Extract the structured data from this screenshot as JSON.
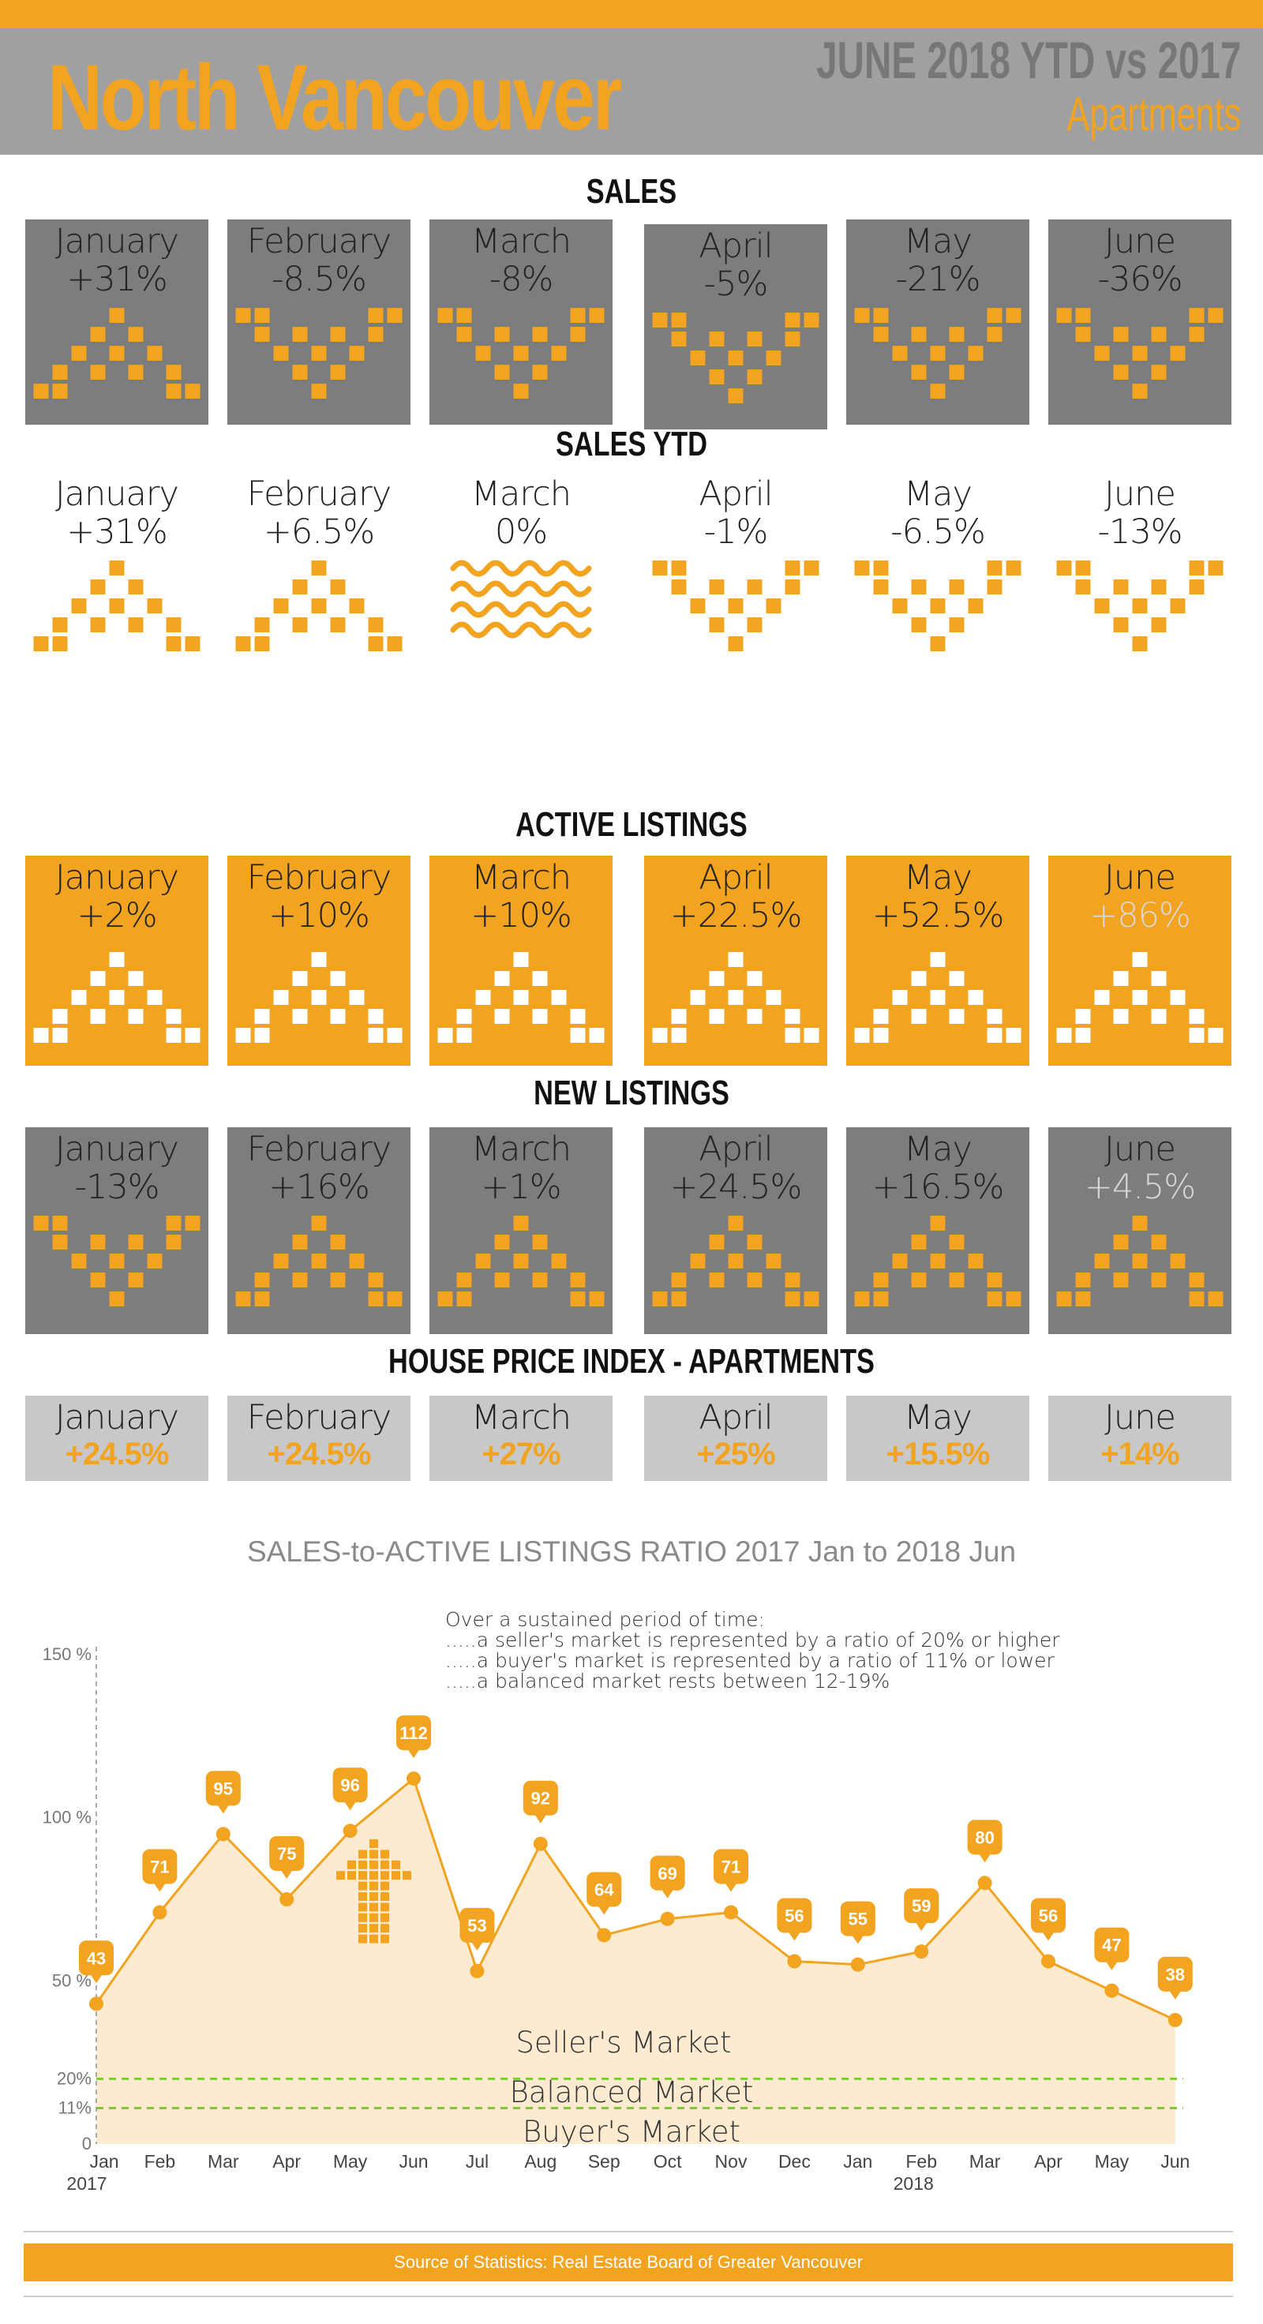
{
  "header": {
    "title": "North Vancouver",
    "period": "JUNE 2018 YTD vs 2017",
    "category": "Apartments"
  },
  "sections": {
    "sales": {
      "title": "SALES",
      "items": [
        {
          "month": "January",
          "change": "+31%",
          "icon": "up-pyramid-icon"
        },
        {
          "month": "February",
          "change": "-8.5%",
          "icon": "down-pyramid-icon"
        },
        {
          "month": "March",
          "change": "-8%",
          "icon": "down-pyramid-icon"
        },
        {
          "month": "April",
          "change": "-5%",
          "icon": "down-pyramid-icon"
        },
        {
          "month": "May",
          "change": "-21%",
          "icon": "down-pyramid-icon"
        },
        {
          "month": "June",
          "change": "-36%",
          "icon": "down-pyramid-icon"
        }
      ]
    },
    "sales_ytd": {
      "title": "SALES YTD",
      "items": [
        {
          "month": "January",
          "change": "+31%",
          "icon": "up-pyramid-icon"
        },
        {
          "month": "February",
          "change": "+6.5%",
          "icon": "up-pyramid-icon"
        },
        {
          "month": "March",
          "change": "0%",
          "icon": "wave-icon"
        },
        {
          "month": "April",
          "change": "-1%",
          "icon": "down-pyramid-icon"
        },
        {
          "month": "May",
          "change": "-6.5%",
          "icon": "down-pyramid-icon"
        },
        {
          "month": "June",
          "change": "-13%",
          "icon": "down-pyramid-icon"
        }
      ]
    },
    "active_listings": {
      "title": "ACTIVE LISTINGS",
      "items": [
        {
          "month": "January",
          "change": "+2%",
          "icon": "up-pyramid-icon"
        },
        {
          "month": "February",
          "change": "+10%",
          "icon": "up-pyramid-icon"
        },
        {
          "month": "March",
          "change": "+10%",
          "icon": "up-pyramid-icon"
        },
        {
          "month": "April",
          "change": "+22.5%",
          "icon": "up-pyramid-icon"
        },
        {
          "month": "May",
          "change": "+52.5%",
          "icon": "up-pyramid-icon"
        },
        {
          "month": "June",
          "change": "+86%",
          "icon": "up-pyramid-icon"
        }
      ]
    },
    "new_listings": {
      "title": "NEW LISTINGS",
      "items": [
        {
          "month": "January",
          "change": "-13%",
          "icon": "down-pyramid-icon"
        },
        {
          "month": "February",
          "change": "+16%",
          "icon": "up-pyramid-icon"
        },
        {
          "month": "March",
          "change": "+1%",
          "icon": "up-pyramid-icon"
        },
        {
          "month": "April",
          "change": "+24.5%",
          "icon": "up-pyramid-icon"
        },
        {
          "month": "May",
          "change": "+16.5%",
          "icon": "up-pyramid-icon"
        },
        {
          "month": "June",
          "change": "+4.5%",
          "icon": "up-pyramid-icon"
        }
      ]
    },
    "hpi": {
      "title": "HOUSE PRICE INDEX - APARTMENTS",
      "items": [
        {
          "month": "January",
          "change": "+24.5%"
        },
        {
          "month": "February",
          "change": "+24.5%"
        },
        {
          "month": "March",
          "change": "+27%"
        },
        {
          "month": "April",
          "change": "+25%"
        },
        {
          "month": "May",
          "change": "+15.5%"
        },
        {
          "month": "June",
          "change": "+14%"
        }
      ]
    }
  },
  "colors": {
    "orange": "#f2a31f",
    "gray": "#7d7d7d",
    "light_gray": "#c8c8c8",
    "area_fill": "#fcebd0",
    "band_line": "#7dc92e"
  },
  "chart_data": {
    "type": "area",
    "title": "SALES-to-ACTIVE LISTINGS RATIO 2017 Jan to 2018 Jun",
    "notes": [
      "Over a sustained period of time:",
      ".....a seller's market is represented by a ratio of 20% or higher",
      ".....a buyer's market is represented by a ratio of 11% or lower",
      ".....a balanced market rests between 12-19%"
    ],
    "x": [
      "Jan",
      "Feb",
      "Mar",
      "Apr",
      "May",
      "Jun",
      "Jul",
      "Aug",
      "Sep",
      "Oct",
      "Nov",
      "Dec",
      "Jan",
      "Feb",
      "Mar",
      "Apr",
      "May",
      "Jun"
    ],
    "year_labels": {
      "0": "2017",
      "13": "2018"
    },
    "values": [
      43,
      71,
      95,
      75,
      96,
      112,
      53,
      92,
      64,
      69,
      71,
      56,
      55,
      59,
      80,
      56,
      47,
      38
    ],
    "y_ticks": [
      {
        "value": 0,
        "label": "0"
      },
      {
        "value": 11,
        "label": "11%"
      },
      {
        "value": 20,
        "label": "20%"
      },
      {
        "value": 50,
        "label": "50 %"
      },
      {
        "value": 100,
        "label": "100 %"
      },
      {
        "value": 150,
        "label": "150 %"
      }
    ],
    "ylim": [
      0,
      150
    ],
    "bands": [
      {
        "value": 20,
        "label": "Balanced Market"
      },
      {
        "value": 11,
        "label": "Buyer's Market"
      }
    ],
    "region_label": "Seller's Market"
  },
  "footer": {
    "source": "Source of Statistics: Real Estate Board of Greater Vancouver"
  }
}
